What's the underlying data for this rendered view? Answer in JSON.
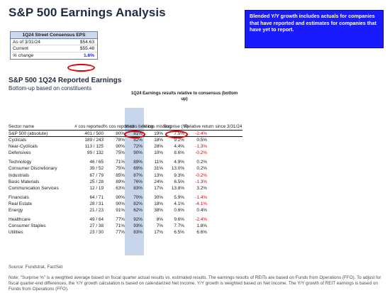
{
  "page": {
    "title": "S&P 500 Earnings Analysis",
    "callout": "Blended Y/Y growth includes actuals for companies that have reported and estimates for companies that have yet to report."
  },
  "eps_box": {
    "header": "1Q24 Street Consensus EPS",
    "rows": [
      {
        "label": "As of 3/31/24",
        "value": "$54.63"
      },
      {
        "label": "Current",
        "value": "$55.48"
      },
      {
        "label": "% change",
        "value": "1.6%"
      }
    ]
  },
  "section": {
    "title": "S&P 500 1Q24 Reported Earnings",
    "subtitle": "Bottom-up based on constituents",
    "group_header": "1Q24 Earnings results relative to consensus (bottom up)"
  },
  "table": {
    "headers": {
      "sector": "Sector name",
      "cos_reported": "# cos reported",
      "pct_reported": "% cos reported",
      "pct_beating": "% cos beating",
      "pct_missing": "% cos missing",
      "surprise": "Surprise (%)",
      "relative": "Relative return since 3/31/24"
    },
    "rows": [
      {
        "sector": "S&P 500 (absolute)",
        "cos": "401 / 500",
        "rep": "80%",
        "beat": "81%",
        "miss": "19%",
        "surp": "7.5%",
        "rel": "-2.4%",
        "rel_red": true
      },
      {
        "sector": "Cyclicals",
        "cos": "189 / 243",
        "rep": "78%",
        "beat": "82%",
        "miss": "18%",
        "surp": "9.2%",
        "rel": "0.5%",
        "rel_red": false
      },
      {
        "sector": "Near-Cyclicals",
        "cos": "113 / 125",
        "rep": "90%",
        "beat": "72%",
        "miss": "28%",
        "surp": "4.4%",
        "rel": "-1.3%",
        "rel_red": true
      },
      {
        "sector": "Defensives",
        "cos": "99 / 132",
        "rep": "75%",
        "beat": "90%",
        "miss": "10%",
        "surp": "8.6%",
        "rel": "-0.2%",
        "rel_red": true
      },
      {
        "sector": "Technology",
        "cos": "46 / 65",
        "rep": "71%",
        "beat": "89%",
        "miss": "11%",
        "surp": "4.9%",
        "rel": "0.2%",
        "rel_red": false
      },
      {
        "sector": "Consumer Discretionary",
        "cos": "39 / 52",
        "rep": "75%",
        "beat": "69%",
        "miss": "31%",
        "surp": "13.0%",
        "rel": "0.2%",
        "rel_red": false
      },
      {
        "sector": "Industrials",
        "cos": "67 / 79",
        "rep": "85%",
        "beat": "87%",
        "miss": "13%",
        "surp": "9.3%",
        "rel": "-0.2%",
        "rel_red": true
      },
      {
        "sector": "Basic Materials",
        "cos": "25 / 28",
        "rep": "89%",
        "beat": "76%",
        "miss": "24%",
        "surp": "6.5%",
        "rel": "-1.3%",
        "rel_red": true
      },
      {
        "sector": "Communication Services",
        "cos": "12 / 19",
        "rep": "63%",
        "beat": "83%",
        "miss": "17%",
        "surp": "13.8%",
        "rel": "3.2%",
        "rel_red": false
      },
      {
        "sector": "Financials",
        "cos": "64 / 71",
        "rep": "90%",
        "beat": "70%",
        "miss": "30%",
        "surp": "5.9%",
        "rel": "-1.4%",
        "rel_red": true
      },
      {
        "sector": "Real Estate",
        "cos": "28 / 31",
        "rep": "90%",
        "beat": "82%",
        "miss": "18%",
        "surp": "4.1%",
        "rel": "-4.1%",
        "rel_red": true
      },
      {
        "sector": "Energy",
        "cos": "21 / 23",
        "rep": "91%",
        "beat": "62%",
        "miss": "38%",
        "surp": "0.6%",
        "rel": "0.4%",
        "rel_red": false
      },
      {
        "sector": "Healthcare",
        "cos": "49 / 64",
        "rep": "77%",
        "beat": "92%",
        "miss": "8%",
        "surp": "9.6%",
        "rel": "-2.4%",
        "rel_red": true
      },
      {
        "sector": "Consumer Staples",
        "cos": "27 / 38",
        "rep": "71%",
        "beat": "93%",
        "miss": "7%",
        "surp": "7.7%",
        "rel": "1.8%",
        "rel_red": false
      },
      {
        "sector": "Utilities",
        "cos": "23 / 30",
        "rep": "77%",
        "beat": "83%",
        "miss": "17%",
        "surp": "6.5%",
        "rel": "6.6%",
        "rel_red": false
      }
    ]
  },
  "footer": {
    "source": "Source: Fundstrat, FactSet",
    "note": "Note: \"Surprise %\" is a weighted average based on fiscal quarter actual results vs. estimated results. The earnings results of REITs are based on Funds from Operations (FFO). To adjust for fiscal quarter-end differences, the Y/Y growth calculation is based on calendarized Net Income. Y/Y growth is weighted based on Net Income. The Y/Y growth of REIT earnings is based on Funds from Operations (FFO)."
  },
  "colors": {
    "accent_blue": "#1a1aff",
    "highlight_band": "#c7d6ea",
    "negative_red": "#e00000"
  }
}
